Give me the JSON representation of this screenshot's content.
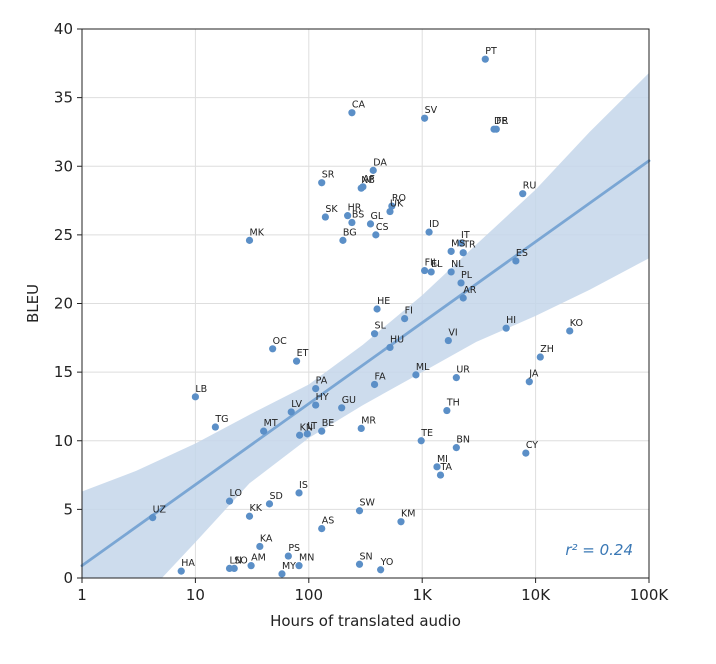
{
  "chart_data": {
    "type": "scatter",
    "xlabel": "Hours of translated audio",
    "ylabel": "BLEU",
    "x_scale": "log",
    "xlim": [
      1,
      100000
    ],
    "ylim": [
      0,
      40
    ],
    "x_ticks": [
      {
        "value": 1,
        "label": "1"
      },
      {
        "value": 10,
        "label": "10"
      },
      {
        "value": 100,
        "label": "100"
      },
      {
        "value": 1000,
        "label": "1K"
      },
      {
        "value": 10000,
        "label": "10K"
      },
      {
        "value": 100000,
        "label": "100K"
      }
    ],
    "y_ticks": [
      0,
      5,
      10,
      15,
      20,
      25,
      30,
      35,
      40
    ],
    "grid": true,
    "annotation": "r² = 0.24",
    "colors": {
      "point": "#5b8fc7",
      "trend": "#7aa6d4",
      "band": "#c4d6ea",
      "annotation": "#3a78b5"
    },
    "trend": {
      "x": [
        1,
        100000
      ],
      "y": [
        0.9,
        30.4
      ]
    },
    "band": {
      "x": [
        1,
        3,
        10,
        30,
        100,
        300,
        1000,
        3000,
        10000,
        30000,
        100000
      ],
      "lower": [
        -4.4,
        -2.0,
        2.6,
        6.9,
        10.2,
        12.6,
        15.0,
        17.2,
        19.1,
        21.0,
        23.3
      ],
      "upper": [
        6.3,
        7.8,
        9.8,
        11.9,
        14.1,
        17.0,
        20.6,
        24.3,
        28.3,
        32.5,
        36.8
      ]
    },
    "points": [
      {
        "label": "PT",
        "x": 3600,
        "y": 37.8
      },
      {
        "label": "CA",
        "x": 240,
        "y": 33.9
      },
      {
        "label": "SV",
        "x": 1050,
        "y": 33.5
      },
      {
        "label": "DE",
        "x": 4300,
        "y": 32.7
      },
      {
        "label": "FR",
        "x": 4500,
        "y": 32.7
      },
      {
        "label": "DA",
        "x": 370,
        "y": 29.7
      },
      {
        "label": "SR",
        "x": 130,
        "y": 28.8
      },
      {
        "label": "NB",
        "x": 290,
        "y": 28.4
      },
      {
        "label": "AF",
        "x": 300,
        "y": 28.5
      },
      {
        "label": "RU",
        "x": 7700,
        "y": 28.0
      },
      {
        "label": "RO",
        "x": 540,
        "y": 27.1
      },
      {
        "label": "HR",
        "x": 220,
        "y": 26.4
      },
      {
        "label": "SK",
        "x": 140,
        "y": 26.3
      },
      {
        "label": "UK",
        "x": 520,
        "y": 26.7
      },
      {
        "label": "BS",
        "x": 240,
        "y": 25.9
      },
      {
        "label": "GL",
        "x": 350,
        "y": 25.8
      },
      {
        "label": "CS",
        "x": 390,
        "y": 25.0
      },
      {
        "label": "ID",
        "x": 1150,
        "y": 25.2
      },
      {
        "label": "MK",
        "x": 30,
        "y": 24.6
      },
      {
        "label": "BG",
        "x": 200,
        "y": 24.6
      },
      {
        "label": "IT",
        "x": 2200,
        "y": 24.4
      },
      {
        "label": "MS",
        "x": 1800,
        "y": 23.8
      },
      {
        "label": "TR",
        "x": 2300,
        "y": 23.7
      },
      {
        "label": "ES",
        "x": 6700,
        "y": 23.1
      },
      {
        "label": "FIL",
        "x": 1050,
        "y": 22.4
      },
      {
        "label": "EL",
        "x": 1200,
        "y": 22.3
      },
      {
        "label": "NL",
        "x": 1800,
        "y": 22.3
      },
      {
        "label": "PL",
        "x": 2200,
        "y": 21.5
      },
      {
        "label": "AR",
        "x": 2300,
        "y": 20.4
      },
      {
        "label": "HE",
        "x": 400,
        "y": 19.6
      },
      {
        "label": "FI",
        "x": 700,
        "y": 18.9
      },
      {
        "label": "HI",
        "x": 5500,
        "y": 18.2
      },
      {
        "label": "KO",
        "x": 20000,
        "y": 18.0
      },
      {
        "label": "SL",
        "x": 380,
        "y": 17.8
      },
      {
        "label": "VI",
        "x": 1700,
        "y": 17.3
      },
      {
        "label": "HU",
        "x": 520,
        "y": 16.8
      },
      {
        "label": "OC",
        "x": 48,
        "y": 16.7
      },
      {
        "label": "ZH",
        "x": 11000,
        "y": 16.1
      },
      {
        "label": "ET",
        "x": 78,
        "y": 15.8
      },
      {
        "label": "ML",
        "x": 880,
        "y": 14.8
      },
      {
        "label": "UR",
        "x": 2000,
        "y": 14.6
      },
      {
        "label": "JA",
        "x": 8800,
        "y": 14.3
      },
      {
        "label": "FA",
        "x": 380,
        "y": 14.1
      },
      {
        "label": "PA",
        "x": 115,
        "y": 13.8
      },
      {
        "label": "LB",
        "x": 10,
        "y": 13.2
      },
      {
        "label": "HY",
        "x": 115,
        "y": 12.6
      },
      {
        "label": "GU",
        "x": 195,
        "y": 12.4
      },
      {
        "label": "LV",
        "x": 70,
        "y": 12.1
      },
      {
        "label": "TH",
        "x": 1650,
        "y": 12.2
      },
      {
        "label": "TG",
        "x": 15,
        "y": 11.0
      },
      {
        "label": "MR",
        "x": 290,
        "y": 10.9
      },
      {
        "label": "MT",
        "x": 40,
        "y": 10.7
      },
      {
        "label": "KN",
        "x": 83,
        "y": 10.4
      },
      {
        "label": "LT",
        "x": 97,
        "y": 10.5
      },
      {
        "label": "BE",
        "x": 130,
        "y": 10.7
      },
      {
        "label": "TE",
        "x": 980,
        "y": 10.0
      },
      {
        "label": "BN",
        "x": 2000,
        "y": 9.5
      },
      {
        "label": "CY",
        "x": 8200,
        "y": 9.1
      },
      {
        "label": "MI",
        "x": 1350,
        "y": 8.1
      },
      {
        "label": "TA",
        "x": 1450,
        "y": 7.5
      },
      {
        "label": "IS",
        "x": 82,
        "y": 6.2
      },
      {
        "label": "LO",
        "x": 20,
        "y": 5.6
      },
      {
        "label": "SD",
        "x": 45,
        "y": 5.4
      },
      {
        "label": "SW",
        "x": 280,
        "y": 4.9
      },
      {
        "label": "UZ",
        "x": 4.2,
        "y": 4.4
      },
      {
        "label": "KK",
        "x": 30,
        "y": 4.5
      },
      {
        "label": "KM",
        "x": 650,
        "y": 4.1
      },
      {
        "label": "AS",
        "x": 130,
        "y": 3.6
      },
      {
        "label": "KA",
        "x": 37,
        "y": 2.3
      },
      {
        "label": "PS",
        "x": 66,
        "y": 1.6
      },
      {
        "label": "MN",
        "x": 82,
        "y": 0.9
      },
      {
        "label": "AM",
        "x": 31,
        "y": 0.9
      },
      {
        "label": "LN",
        "x": 20,
        "y": 0.7
      },
      {
        "label": "SO",
        "x": 22,
        "y": 0.7
      },
      {
        "label": "SN",
        "x": 280,
        "y": 1.0
      },
      {
        "label": "YO",
        "x": 430,
        "y": 0.6
      },
      {
        "label": "HA",
        "x": 7.5,
        "y": 0.5
      },
      {
        "label": "MY",
        "x": 58,
        "y": 0.3
      }
    ]
  }
}
